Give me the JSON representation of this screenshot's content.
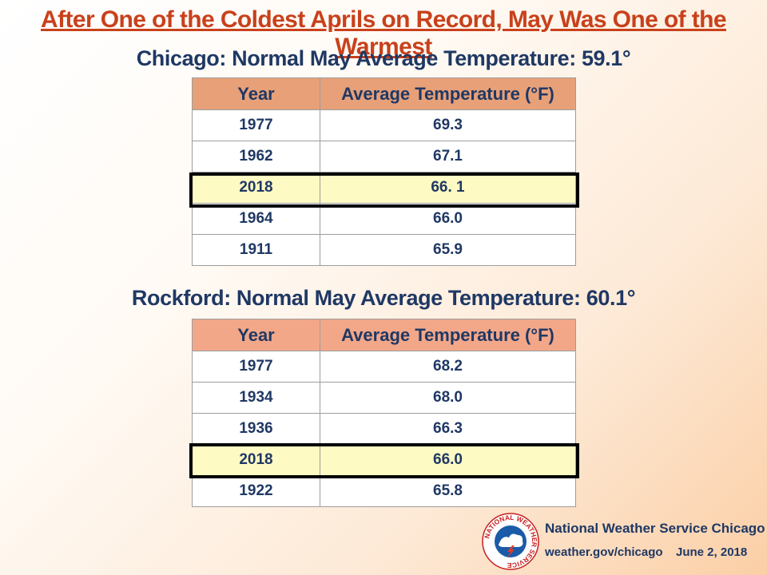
{
  "title": "After One of the Coldest Aprils on Record, May Was One of the Warmest",
  "chart_data": [
    {
      "type": "table",
      "title": "Chicago: Normal May Average Temperature: 59.1°",
      "headers": [
        "Year",
        "Average Temperature (°F)"
      ],
      "rows": [
        {
          "year": "1977",
          "temp": "69.3"
        },
        {
          "year": "1962",
          "temp": "67.1"
        },
        {
          "year": "2018",
          "temp": "66. 1"
        },
        {
          "year": "1964",
          "temp": "66.0"
        },
        {
          "year": "1911",
          "temp": "65.9"
        }
      ],
      "highlighted_year": "2018"
    },
    {
      "type": "table",
      "title": "Rockford: Normal May Average Temperature: 60.1°",
      "headers": [
        "Year",
        "Average Temperature (°F)"
      ],
      "rows": [
        {
          "year": "1977",
          "temp": "68.2"
        },
        {
          "year": "1934",
          "temp": "68.0"
        },
        {
          "year": "1936",
          "temp": "66.3"
        },
        {
          "year": "2018",
          "temp": "66.0"
        },
        {
          "year": "1922",
          "temp": "65.8"
        }
      ],
      "highlighted_year": "2018"
    }
  ],
  "footer": {
    "org": "National Weather Service  Chicago",
    "url": "weather.gov/chicago",
    "date": "June 2, 2018",
    "logo_text": "NATIONAL WEATHER SERVICE"
  },
  "colors": {
    "title": "#c8411b",
    "text": "#1f3864",
    "chicago_header": "#e8a078",
    "rockford_header": "#f2a789",
    "highlight": "#fefac4"
  }
}
